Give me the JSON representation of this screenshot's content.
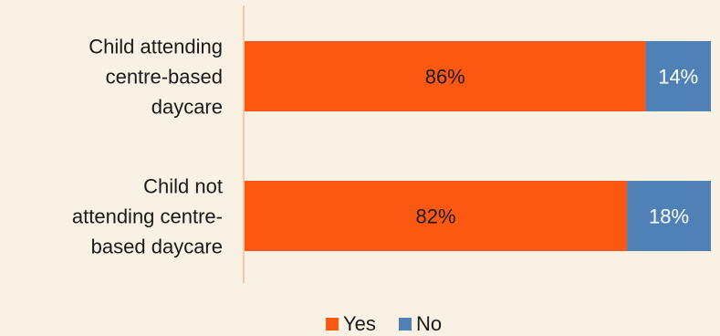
{
  "chart_data": {
    "type": "bar",
    "orientation": "horizontal",
    "stacked": "100%",
    "categories": [
      [
        "Child attending",
        "centre-based",
        "daycare"
      ],
      [
        "Child not",
        "attending centre-",
        "based daycare"
      ]
    ],
    "series": [
      {
        "name": "Yes",
        "values": [
          86,
          82
        ],
        "labels": [
          "86%",
          "82%"
        ],
        "color": "#fd5812",
        "label_color": "#1a1a1a"
      },
      {
        "name": "No",
        "values": [
          14,
          18
        ],
        "labels": [
          "14%",
          "18%"
        ],
        "color": "#4f81b6",
        "label_color": "#ffffff"
      }
    ],
    "xlim": [
      0,
      100
    ],
    "grid": false,
    "legend": "bottom",
    "axis_color": "#f5c6a8"
  }
}
